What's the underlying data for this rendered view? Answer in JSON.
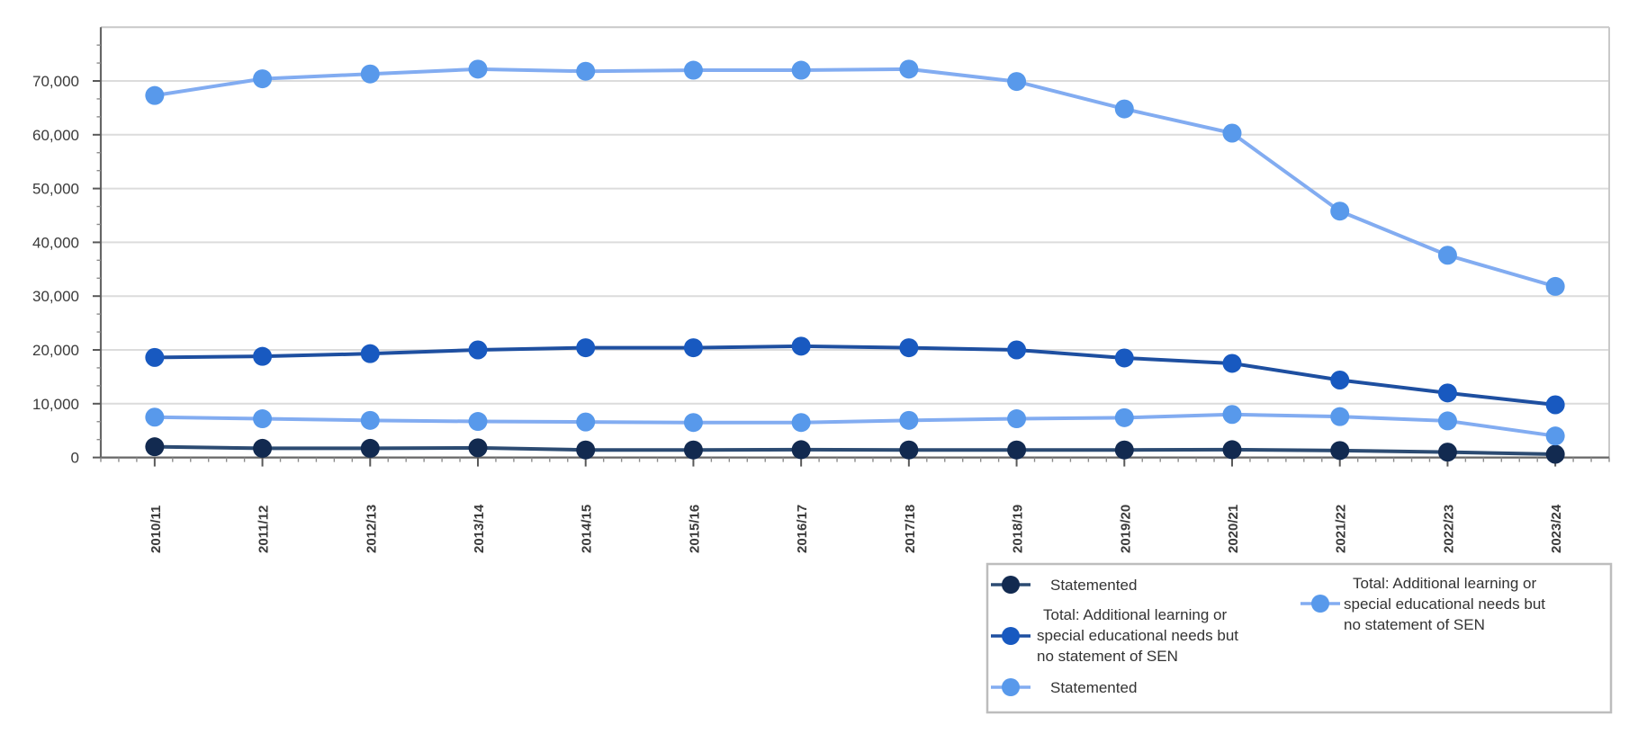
{
  "chart_data": {
    "type": "line",
    "title": "",
    "xlabel": "",
    "ylabel": "",
    "categories": [
      "2010/11",
      "2011/12",
      "2012/13",
      "2013/14",
      "2014/15",
      "2015/16",
      "2016/17",
      "2017/18",
      "2018/19",
      "2019/20",
      "2020/21",
      "2021/22",
      "2022/23",
      "2023/24"
    ],
    "series": [
      {
        "name": "Statemented",
        "line_color": "#2C4B72",
        "marker_color": "#122A50",
        "values": [
          2000,
          1700,
          1700,
          1800,
          1400,
          1400,
          1450,
          1400,
          1400,
          1400,
          1450,
          1300,
          1000,
          600
        ]
      },
      {
        "name": "Total: Additional learning or special educational needs but no statement of SEN",
        "line_color": "#1E4FA0",
        "marker_color": "#1859C0",
        "values": [
          18600,
          18800,
          19300,
          20000,
          20400,
          20400,
          20700,
          20400,
          20000,
          18500,
          17500,
          14400,
          12000,
          9800
        ]
      },
      {
        "name": "Statemented",
        "line_color": "#82ACF1",
        "marker_color": "#5899EB",
        "values": [
          7500,
          7200,
          6900,
          6700,
          6600,
          6500,
          6500,
          6900,
          7200,
          7400,
          8000,
          7600,
          6800,
          4000
        ]
      },
      {
        "name": "Total: Additional learning or special educational needs but no statement of SEN",
        "line_color": "#82ACF1",
        "marker_color": "#5899EB",
        "values": [
          67300,
          70400,
          71300,
          72200,
          71800,
          72000,
          72000,
          72200,
          69900,
          64800,
          60300,
          45800,
          37600,
          31800
        ]
      }
    ],
    "ylim": [
      0,
      80000
    ],
    "ytick_step": 10000,
    "ytick_labels": [
      "0",
      "10,000",
      "20,000",
      "30,000",
      "40,000",
      "50,000",
      "60,000",
      "70,000"
    ],
    "grid": "horizontal",
    "legend_position": "bottom-right"
  },
  "legend": {
    "entries": [
      {
        "series": 0,
        "lines": [
          "Statemented"
        ]
      },
      {
        "series": 1,
        "lines": [
          "Total: Additional learning or",
          "special educational needs but",
          "no statement of SEN"
        ]
      },
      {
        "series": 2,
        "lines": [
          "Statemented"
        ]
      },
      {
        "series": 3,
        "lines": [
          "Total: Additional learning or",
          "special educational needs but",
          "no statement of SEN"
        ]
      }
    ]
  },
  "colors": {
    "background": "#FFFFFF",
    "axis": "#666666",
    "tick_major": "#595959",
    "tick_minor": "#8C8C8C",
    "gridline": "#DCDCDC",
    "plot_border": "#C9C9C9",
    "axis_label": "#3A3A3A",
    "legend_border": "#BDBDBD",
    "legend_text": "#333333"
  }
}
